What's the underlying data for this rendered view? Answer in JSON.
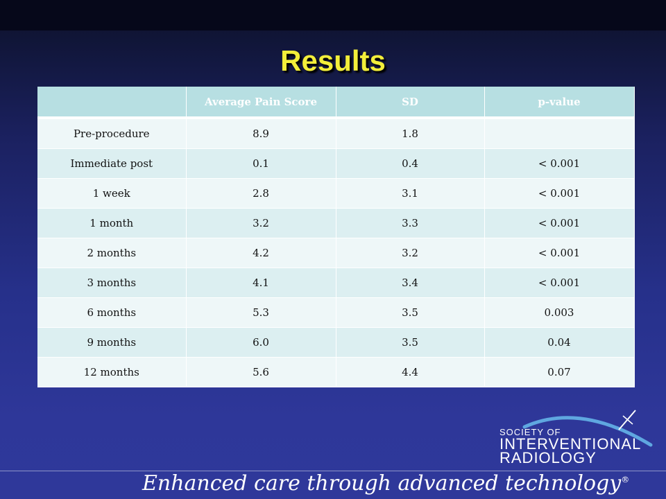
{
  "slide": {
    "title": "Results"
  },
  "table": {
    "headers": [
      "",
      "Average Pain Score",
      "SD",
      "p-value"
    ],
    "rows": [
      [
        "Pre-procedure",
        "8.9",
        "1.8",
        ""
      ],
      [
        "Immediate post",
        "0.1",
        "0.4",
        "< 0.001"
      ],
      [
        "1 week",
        "2.8",
        "3.1",
        "< 0.001"
      ],
      [
        "1 month",
        "3.2",
        "3.3",
        "< 0.001"
      ],
      [
        "2 months",
        "4.2",
        "3.2",
        "< 0.001"
      ],
      [
        "3 months",
        "4.1",
        "3.4",
        "< 0.001"
      ],
      [
        "6 months",
        "5.3",
        "3.5",
        "0.003"
      ],
      [
        "9 months",
        "6.0",
        "3.5",
        "0.04"
      ],
      [
        "12 months",
        "5.6",
        "4.4",
        "0.07"
      ]
    ]
  },
  "chart_data": {
    "type": "table",
    "title": "Results",
    "columns": [
      "",
      "Average Pain Score",
      "SD",
      "p-value"
    ],
    "rows": [
      [
        "Pre-procedure",
        "8.9",
        "1.8",
        ""
      ],
      [
        "Immediate post",
        "0.1",
        "0.4",
        "< 0.001"
      ],
      [
        "1 week",
        "2.8",
        "3.1",
        "< 0.001"
      ],
      [
        "1 month",
        "3.2",
        "3.3",
        "< 0.001"
      ],
      [
        "2 months",
        "4.2",
        "3.2",
        "< 0.001"
      ],
      [
        "3 months",
        "4.1",
        "3.4",
        "< 0.001"
      ],
      [
        "6 months",
        "5.3",
        "3.5",
        "0.003"
      ],
      [
        "9 months",
        "6.0",
        "3.5",
        "0.04"
      ],
      [
        "12 months",
        "5.6",
        "4.4",
        "0.07"
      ]
    ]
  },
  "logo": {
    "line1": "SOCIETY OF",
    "line2": "INTERVENTIONAL",
    "line3": "RADIOLOGY",
    "icon": "arc-needle-icon"
  },
  "footer": {
    "tagline": "Enhanced care through advanced technology",
    "mark": "®"
  },
  "colors": {
    "title": "#f2ee3a",
    "header_bg": "#b7dfe2",
    "row_odd": "#dceff1",
    "row_even": "#eef7f8",
    "logo_arc": "#5fa7e0"
  }
}
